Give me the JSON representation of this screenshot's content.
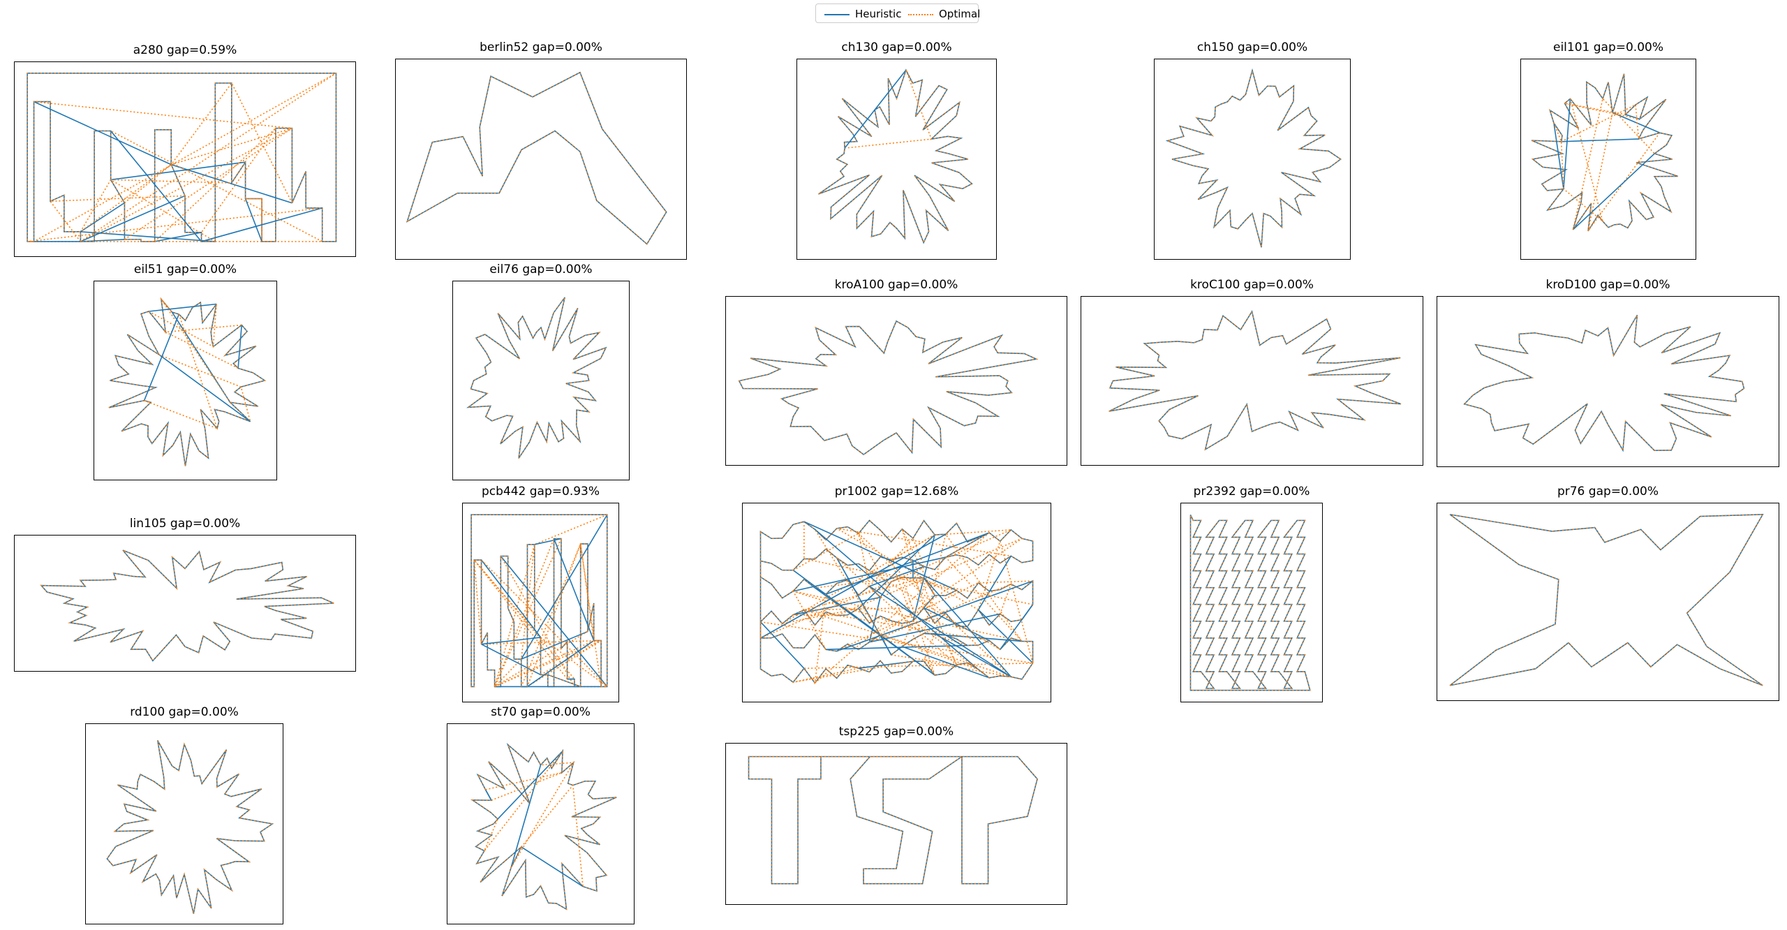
{
  "legend": {
    "heuristic": "Heuristic",
    "optimal": "Optimal",
    "heuristic_color": "#1f77b4",
    "optimal_color": "#ff7f0e",
    "placement": "upper-center"
  },
  "chart_data": [
    {
      "type": "line",
      "name": "a280",
      "title": "a280 gap=0.59%",
      "gap_percent": 0.59,
      "aspect": 1.75,
      "shape": "rect-maze",
      "seed": 11,
      "diff_edges": 12
    },
    {
      "type": "line",
      "name": "berlin52",
      "title": "berlin52 gap=0.00%",
      "gap_percent": 0.0,
      "aspect": 1.47,
      "shape": "berlin52",
      "seed": 0,
      "diff_edges": 0
    },
    {
      "type": "line",
      "name": "ch130",
      "title": "ch130 gap=0.00%",
      "gap_percent": 0.0,
      "aspect": 0.99,
      "shape": "jagged",
      "seed": 21,
      "diff_edges": 1
    },
    {
      "type": "line",
      "name": "ch150",
      "title": "ch150 gap=0.00%",
      "gap_percent": 0.0,
      "aspect": 0.98,
      "shape": "jagged",
      "seed": 33,
      "diff_edges": 0
    },
    {
      "type": "line",
      "name": "eil101",
      "title": "eil101 gap=0.00%",
      "gap_percent": 0.0,
      "aspect": 0.87,
      "shape": "jagged",
      "seed": 47,
      "diff_edges": 6
    },
    {
      "type": "line",
      "name": "eil51",
      "title": "eil51 gap=0.00%",
      "gap_percent": 0.0,
      "aspect": 0.93,
      "shape": "jagged",
      "seed": 52,
      "diff_edges": 5
    },
    {
      "type": "line",
      "name": "eil76",
      "title": "eil76 gap=0.00%",
      "gap_percent": 0.0,
      "aspect": 0.89,
      "shape": "jagged",
      "seed": 63,
      "diff_edges": 0
    },
    {
      "type": "line",
      "name": "kroA100",
      "title": "kroA100 gap=0.00%",
      "gap_percent": 0.0,
      "aspect": 2.04,
      "shape": "jagged",
      "seed": 71,
      "diff_edges": 0
    },
    {
      "type": "line",
      "name": "kroC100",
      "title": "kroC100 gap=0.00%",
      "gap_percent": 0.0,
      "aspect": 2.03,
      "shape": "jagged",
      "seed": 83,
      "diff_edges": 0
    },
    {
      "type": "line",
      "name": "kroD100",
      "title": "kroD100 gap=0.00%",
      "gap_percent": 0.0,
      "aspect": 2.05,
      "shape": "jagged",
      "seed": 95,
      "diff_edges": 0
    },
    {
      "type": "line",
      "name": "lin105",
      "title": "lin105 gap=0.00%",
      "gap_percent": 0.0,
      "aspect": 2.5,
      "shape": "jagged",
      "seed": 105,
      "diff_edges": 0
    },
    {
      "type": "line",
      "name": "pcb442",
      "title": "pcb442 gap=0.93%",
      "gap_percent": 0.93,
      "aspect": 0.78,
      "shape": "rect-maze",
      "seed": 442,
      "diff_edges": 14
    },
    {
      "type": "line",
      "name": "pr1002",
      "title": "pr1002 gap=12.68%",
      "gap_percent": 12.68,
      "aspect": 1.55,
      "shape": "dense",
      "seed": 1002,
      "diff_edges": 30
    },
    {
      "type": "line",
      "name": "pr2392",
      "title": "pr2392 gap=0.00%",
      "gap_percent": 0.0,
      "aspect": 0.71,
      "shape": "blocks",
      "seed": 2392,
      "diff_edges": 0
    },
    {
      "type": "line",
      "name": "pr76",
      "title": "pr76 gap=0.00%",
      "gap_percent": 0.0,
      "aspect": 2.0,
      "shape": "pr76",
      "seed": 0,
      "diff_edges": 0
    },
    {
      "type": "line",
      "name": "rd100",
      "title": "rd100 gap=0.00%",
      "gap_percent": 0.0,
      "aspect": 0.99,
      "shape": "jagged",
      "seed": 117,
      "diff_edges": 0
    },
    {
      "type": "line",
      "name": "st70",
      "title": "st70 gap=0.00%",
      "gap_percent": 0.0,
      "aspect": 0.93,
      "shape": "jagged",
      "seed": 170,
      "diff_edges": 4
    },
    {
      "type": "line",
      "name": "tsp225",
      "title": "tsp225 gap=0.00%",
      "gap_percent": 0.0,
      "aspect": 2.05,
      "shape": "tsp-letters",
      "seed": 0,
      "diff_edges": 0
    }
  ]
}
